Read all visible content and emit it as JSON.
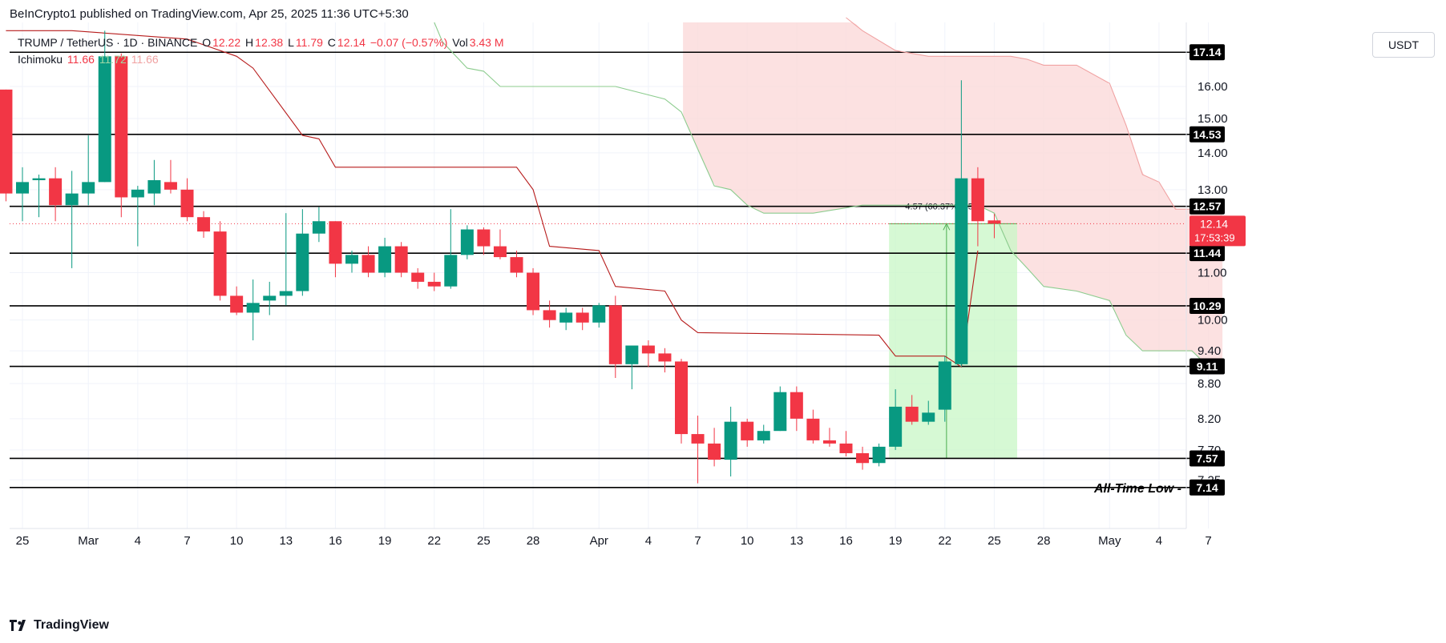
{
  "header": {
    "published": "BeInCrypto1 published on TradingView.com, Apr 25, 2025 11:36 UTC+5:30"
  },
  "legend": {
    "symbol": "TRUMP / TetherUS · 1D · BINANCE",
    "o_label": "O",
    "o_value": "12.22",
    "h_label": "H",
    "h_value": "12.38",
    "l_label": "L",
    "l_value": "11.79",
    "c_label": "C",
    "c_value": "12.14",
    "change": "−0.07 (−0.57%)",
    "vol_label": "Vol",
    "vol_value": "3.43 M",
    "ichimoku_label": "Ichimoku",
    "ichimoku_v1": "11.66",
    "ichimoku_v2": "11.72",
    "ichimoku_v3": "11.66"
  },
  "currency_button": "USDT",
  "footer": {
    "brand": "TradingView"
  },
  "colors": {
    "up": "#089981",
    "down": "#f23645",
    "cloud": "#fbd9d9",
    "range": "#c8f7c5",
    "kijun": "#b71c1c",
    "span_a": "#8ccc8e",
    "span_b": "#f0a2a2"
  },
  "chart_data": {
    "type": "candlestick",
    "y_scale": "log",
    "ylim": [
      6.9,
      18.2
    ],
    "x_ticks": [
      "25",
      "Mar",
      "4",
      "7",
      "10",
      "13",
      "16",
      "19",
      "22",
      "25",
      "28",
      "Apr",
      "4",
      "7",
      "10",
      "13",
      "16",
      "19",
      "22",
      "25",
      "28",
      "May",
      "4",
      "7"
    ],
    "x_tick_days": [
      0,
      4,
      7,
      10,
      13,
      16,
      19,
      22,
      25,
      28,
      31,
      35,
      38,
      41,
      44,
      47,
      50,
      53,
      56,
      59,
      62,
      66,
      69,
      72
    ],
    "price_ticks": [
      "16.00",
      "15.00",
      "14.00",
      "13.00",
      "11.00",
      "10.00",
      "9.40",
      "8.80",
      "8.20",
      "7.70",
      "7.25"
    ],
    "price_tick_values": [
      16.0,
      15.0,
      14.0,
      13.0,
      11.0,
      10.0,
      9.4,
      8.8,
      8.2,
      7.7,
      7.25
    ],
    "levels": [
      {
        "value": 17.14,
        "label": "17.14"
      },
      {
        "value": 14.53,
        "label": "14.53"
      },
      {
        "value": 12.57,
        "label": "12.57"
      },
      {
        "value": 11.44,
        "label": "11.44"
      },
      {
        "value": 10.29,
        "label": "10.29"
      },
      {
        "value": 9.11,
        "label": "9.11"
      },
      {
        "value": 7.57,
        "label": "7.57"
      },
      {
        "value": 7.14,
        "label": "7.14"
      }
    ],
    "all_time_low_label": "All-Time Low",
    "current_price_label": "12.14",
    "countdown_label": "17:53:39",
    "current_price": 12.14,
    "measure": {
      "label": "4.57 (60.37%) 457",
      "from_day": 53,
      "to_day": 60,
      "low": 7.57,
      "high": 12.14
    },
    "candles": [
      {
        "d": -1,
        "o": 15.9,
        "h": 15.9,
        "l": 12.7,
        "c": 12.9
      },
      {
        "d": 0,
        "o": 12.9,
        "h": 13.6,
        "l": 12.2,
        "c": 13.2
      },
      {
        "d": 1,
        "o": 13.25,
        "h": 13.4,
        "l": 12.3,
        "c": 13.3
      },
      {
        "d": 2,
        "o": 13.3,
        "h": 13.6,
        "l": 12.2,
        "c": 12.6
      },
      {
        "d": 3,
        "o": 12.6,
        "h": 13.5,
        "l": 11.1,
        "c": 12.9
      },
      {
        "d": 4,
        "o": 12.9,
        "h": 14.5,
        "l": 12.6,
        "c": 13.2
      },
      {
        "d": 5,
        "o": 13.2,
        "h": 17.9,
        "l": 13.2,
        "c": 17.0
      },
      {
        "d": 6,
        "o": 17.0,
        "h": 17.1,
        "l": 12.3,
        "c": 12.8
      },
      {
        "d": 7,
        "o": 12.8,
        "h": 13.1,
        "l": 11.6,
        "c": 13.0
      },
      {
        "d": 8,
        "o": 12.9,
        "h": 13.8,
        "l": 12.6,
        "c": 13.25
      },
      {
        "d": 9,
        "o": 13.2,
        "h": 13.8,
        "l": 12.9,
        "c": 13.0
      },
      {
        "d": 10,
        "o": 13.0,
        "h": 13.3,
        "l": 12.2,
        "c": 12.3
      },
      {
        "d": 11,
        "o": 12.3,
        "h": 12.45,
        "l": 11.8,
        "c": 11.95
      },
      {
        "d": 12,
        "o": 11.95,
        "h": 12.2,
        "l": 10.4,
        "c": 10.5
      },
      {
        "d": 13,
        "o": 10.5,
        "h": 10.7,
        "l": 10.1,
        "c": 10.15
      },
      {
        "d": 14,
        "o": 10.15,
        "h": 10.85,
        "l": 9.6,
        "c": 10.35
      },
      {
        "d": 15,
        "o": 10.4,
        "h": 10.8,
        "l": 10.1,
        "c": 10.5
      },
      {
        "d": 16,
        "o": 10.5,
        "h": 12.4,
        "l": 10.3,
        "c": 10.6
      },
      {
        "d": 17,
        "o": 10.6,
        "h": 12.5,
        "l": 10.5,
        "c": 11.9
      },
      {
        "d": 18,
        "o": 11.9,
        "h": 12.55,
        "l": 11.7,
        "c": 12.2
      },
      {
        "d": 19,
        "o": 12.2,
        "h": 12.2,
        "l": 10.9,
        "c": 11.2
      },
      {
        "d": 20,
        "o": 11.2,
        "h": 11.5,
        "l": 11.0,
        "c": 11.4
      },
      {
        "d": 21,
        "o": 11.4,
        "h": 11.6,
        "l": 10.9,
        "c": 11.0
      },
      {
        "d": 22,
        "o": 11.0,
        "h": 11.8,
        "l": 10.9,
        "c": 11.6
      },
      {
        "d": 23,
        "o": 11.6,
        "h": 11.7,
        "l": 10.9,
        "c": 11.0
      },
      {
        "d": 24,
        "o": 11.0,
        "h": 11.1,
        "l": 10.65,
        "c": 10.8
      },
      {
        "d": 25,
        "o": 10.8,
        "h": 11.0,
        "l": 10.6,
        "c": 10.7
      },
      {
        "d": 26,
        "o": 10.7,
        "h": 12.5,
        "l": 10.65,
        "c": 11.4
      },
      {
        "d": 27,
        "o": 11.4,
        "h": 12.1,
        "l": 11.3,
        "c": 12.0
      },
      {
        "d": 28,
        "o": 12.0,
        "h": 12.05,
        "l": 11.4,
        "c": 11.6
      },
      {
        "d": 29,
        "o": 11.6,
        "h": 12.0,
        "l": 11.3,
        "c": 11.35
      },
      {
        "d": 30,
        "o": 11.35,
        "h": 11.5,
        "l": 10.9,
        "c": 11.0
      },
      {
        "d": 31,
        "o": 11.0,
        "h": 11.1,
        "l": 10.1,
        "c": 10.2
      },
      {
        "d": 32,
        "o": 10.2,
        "h": 10.4,
        "l": 9.85,
        "c": 10.0
      },
      {
        "d": 33,
        "o": 9.95,
        "h": 10.25,
        "l": 9.8,
        "c": 10.15
      },
      {
        "d": 34,
        "o": 10.15,
        "h": 10.25,
        "l": 9.8,
        "c": 9.95
      },
      {
        "d": 35,
        "o": 9.95,
        "h": 10.35,
        "l": 9.85,
        "c": 10.3
      },
      {
        "d": 36,
        "o": 10.3,
        "h": 10.5,
        "l": 8.9,
        "c": 9.15
      },
      {
        "d": 37,
        "o": 9.15,
        "h": 9.5,
        "l": 8.7,
        "c": 9.5
      },
      {
        "d": 38,
        "o": 9.5,
        "h": 9.6,
        "l": 9.1,
        "c": 9.35
      },
      {
        "d": 39,
        "o": 9.35,
        "h": 9.45,
        "l": 9.0,
        "c": 9.2
      },
      {
        "d": 40,
        "o": 9.2,
        "h": 9.25,
        "l": 7.8,
        "c": 7.95
      },
      {
        "d": 41,
        "o": 7.95,
        "h": 8.25,
        "l": 7.2,
        "c": 7.8
      },
      {
        "d": 42,
        "o": 7.8,
        "h": 8.05,
        "l": 7.45,
        "c": 7.55
      },
      {
        "d": 43,
        "o": 7.55,
        "h": 8.4,
        "l": 7.3,
        "c": 8.15
      },
      {
        "d": 44,
        "o": 8.15,
        "h": 8.2,
        "l": 7.75,
        "c": 7.85
      },
      {
        "d": 45,
        "o": 7.85,
        "h": 8.1,
        "l": 7.8,
        "c": 8.0
      },
      {
        "d": 46,
        "o": 8.0,
        "h": 8.75,
        "l": 8.0,
        "c": 8.65
      },
      {
        "d": 47,
        "o": 8.65,
        "h": 8.75,
        "l": 8.0,
        "c": 8.2
      },
      {
        "d": 48,
        "o": 8.2,
        "h": 8.35,
        "l": 7.8,
        "c": 7.85
      },
      {
        "d": 49,
        "o": 7.85,
        "h": 8.05,
        "l": 7.75,
        "c": 7.8
      },
      {
        "d": 50,
        "o": 7.8,
        "h": 8.0,
        "l": 7.6,
        "c": 7.65
      },
      {
        "d": 51,
        "o": 7.65,
        "h": 7.75,
        "l": 7.4,
        "c": 7.5
      },
      {
        "d": 52,
        "o": 7.5,
        "h": 7.8,
        "l": 7.45,
        "c": 7.75
      },
      {
        "d": 53,
        "o": 7.75,
        "h": 8.7,
        "l": 7.7,
        "c": 8.4
      },
      {
        "d": 54,
        "o": 8.4,
        "h": 8.6,
        "l": 8.1,
        "c": 8.15
      },
      {
        "d": 55,
        "o": 8.15,
        "h": 8.5,
        "l": 8.1,
        "c": 8.3
      },
      {
        "d": 56,
        "o": 8.35,
        "h": 9.3,
        "l": 8.15,
        "c": 9.2
      },
      {
        "d": 57,
        "o": 9.15,
        "h": 16.2,
        "l": 9.1,
        "c": 13.3
      },
      {
        "d": 58,
        "o": 13.3,
        "h": 13.6,
        "l": 11.6,
        "c": 12.2
      },
      {
        "d": 59,
        "o": 12.22,
        "h": 12.38,
        "l": 11.79,
        "c": 12.14
      }
    ],
    "kijun": [
      [
        -1,
        17.9
      ],
      [
        3,
        17.9
      ],
      [
        10,
        17.6
      ],
      [
        13,
        17.0
      ],
      [
        14,
        16.6
      ],
      [
        17,
        14.5
      ],
      [
        18,
        14.4
      ],
      [
        19,
        13.6
      ],
      [
        30,
        13.6
      ],
      [
        31,
        13.0
      ],
      [
        32,
        11.6
      ],
      [
        35,
        11.5
      ],
      [
        36,
        10.7
      ],
      [
        39,
        10.6
      ],
      [
        40,
        10.0
      ],
      [
        41,
        9.75
      ],
      [
        52,
        9.7
      ],
      [
        53,
        9.3
      ],
      [
        56,
        9.3
      ],
      [
        57,
        9.1
      ],
      [
        58,
        11.5
      ]
    ],
    "senkou_a": [
      [
        25,
        18.2
      ],
      [
        25.5,
        17.5
      ],
      [
        27,
        16.6
      ],
      [
        28,
        16.5
      ],
      [
        29,
        16.0
      ],
      [
        30,
        16.0
      ],
      [
        36,
        16.0
      ],
      [
        39,
        15.6
      ],
      [
        40,
        15.2
      ],
      [
        41,
        14.1
      ],
      [
        42,
        13.1
      ],
      [
        43,
        13.0
      ],
      [
        44,
        12.6
      ],
      [
        45,
        12.4
      ],
      [
        46,
        12.4
      ],
      [
        48,
        12.4
      ],
      [
        51,
        12.6
      ],
      [
        58,
        12.6
      ],
      [
        59,
        12.4
      ],
      [
        60,
        11.5
      ],
      [
        61,
        11.1
      ],
      [
        62,
        10.7
      ],
      [
        64,
        10.6
      ],
      [
        66,
        10.4
      ],
      [
        67,
        9.7
      ],
      [
        68,
        9.4
      ],
      [
        71,
        9.4
      ],
      [
        72,
        9.1
      ]
    ],
    "senkou_b": [
      [
        50,
        18.5
      ],
      [
        51,
        17.9
      ],
      [
        53,
        17.2
      ],
      [
        55,
        17.0
      ],
      [
        60,
        17.0
      ],
      [
        61,
        16.9
      ],
      [
        62,
        16.7
      ],
      [
        64,
        16.7
      ],
      [
        66,
        16.1
      ],
      [
        67,
        14.8
      ],
      [
        68,
        13.4
      ],
      [
        69,
        13.2
      ],
      [
        70,
        12.5
      ],
      [
        73,
        12.5
      ]
    ]
  }
}
